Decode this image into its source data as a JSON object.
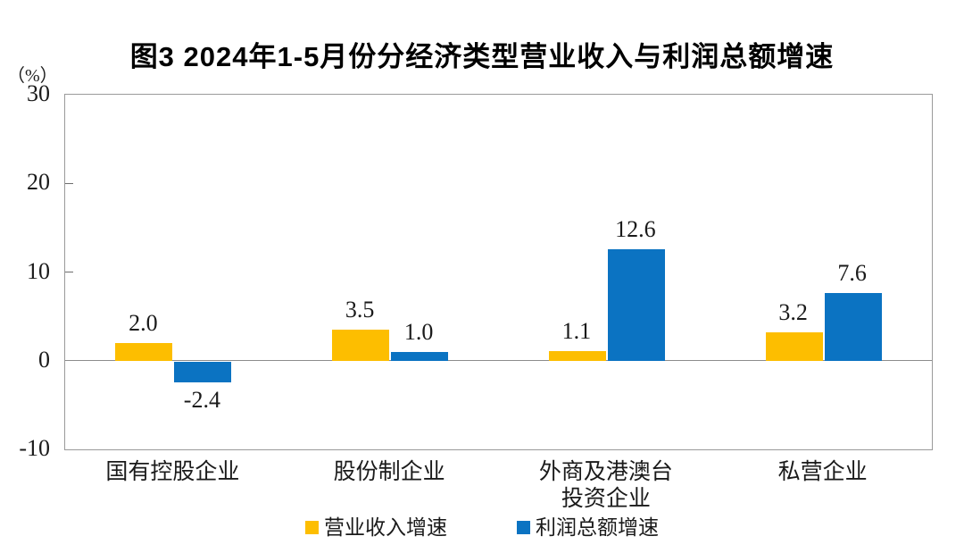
{
  "title": "图3  2024年1-5月份分经济类型营业收入与利润总额增速",
  "unit_label": "（%）",
  "chart_data": {
    "type": "bar",
    "title": "图3  2024年1-5月份分经济类型营业收入与利润总额增速",
    "categories": [
      "国有控股企业",
      "股份制企业",
      "外商及港澳台\n投资企业",
      "私营企业"
    ],
    "series": [
      {
        "name": "营业收入增速",
        "color": "#FDBE00",
        "values": [
          2.0,
          3.5,
          1.1,
          3.2
        ]
      },
      {
        "name": "利润总额增速",
        "color": "#0B73C2",
        "values": [
          -2.4,
          1.0,
          12.6,
          7.6
        ]
      }
    ],
    "xlabel": "",
    "ylabel": "（%）",
    "ylim": [
      -10,
      30
    ],
    "yticks": [
      30,
      20,
      10,
      0,
      -10
    ],
    "grid": false,
    "legend_position": "bottom",
    "value_labels": {
      "营业收入增速": [
        "2.0",
        "3.5",
        "1.1",
        "3.2"
      ],
      "利润总额增速": [
        "-2.4",
        "1.0",
        "12.6",
        "7.6"
      ]
    }
  }
}
